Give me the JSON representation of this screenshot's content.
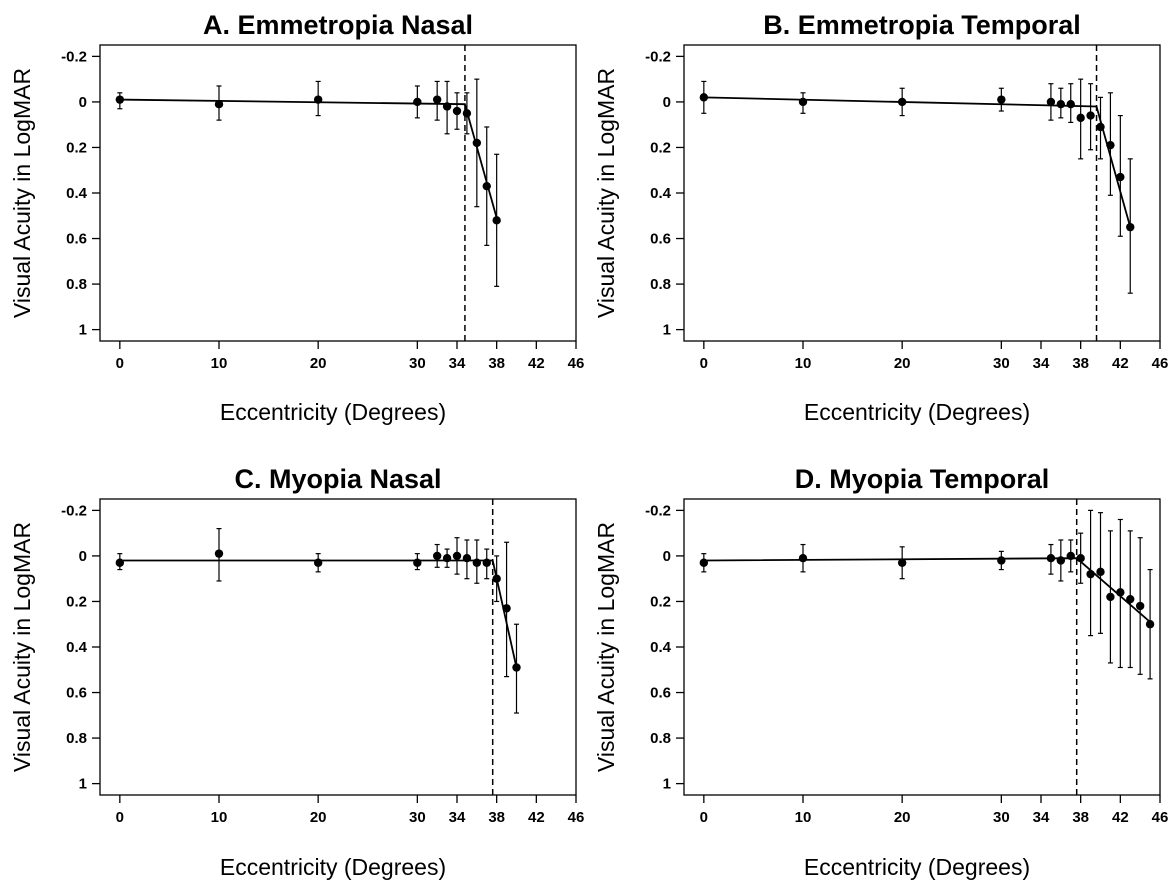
{
  "chart_data": [
    {
      "type": "scatter",
      "title": "A. Emmetropia Nasal",
      "xlabel": "Eccentricity (Degrees)",
      "ylabel": "Visual Acuity in LogMAR",
      "xlim": [
        -2,
        46
      ],
      "ylim": [
        -0.25,
        1.05
      ],
      "y_inverted": true,
      "x_ticks": [
        0,
        10,
        20,
        30,
        34,
        38,
        42,
        46
      ],
      "y_ticks": [
        -0.2,
        0,
        0.2,
        0.4,
        0.6,
        0.8,
        1
      ],
      "y_tick_labels": [
        "-0.2",
        "0",
        "0.2",
        "0.4",
        "0.6",
        "0.8",
        "1"
      ],
      "breakpoint": 34.8,
      "points": [
        {
          "x": 0,
          "y": -0.01,
          "lo": -0.04,
          "hi": 0.03
        },
        {
          "x": 10,
          "y": 0.01,
          "lo": -0.07,
          "hi": 0.08
        },
        {
          "x": 20,
          "y": -0.01,
          "lo": -0.09,
          "hi": 0.06
        },
        {
          "x": 30,
          "y": 0.0,
          "lo": -0.07,
          "hi": 0.07
        },
        {
          "x": 32,
          "y": -0.01,
          "lo": -0.09,
          "hi": 0.08
        },
        {
          "x": 33,
          "y": 0.02,
          "lo": -0.09,
          "hi": 0.14
        },
        {
          "x": 34,
          "y": 0.04,
          "lo": -0.04,
          "hi": 0.12
        },
        {
          "x": 35,
          "y": 0.05,
          "lo": -0.04,
          "hi": 0.14
        },
        {
          "x": 36,
          "y": 0.18,
          "lo": -0.1,
          "hi": 0.46
        },
        {
          "x": 37,
          "y": 0.37,
          "lo": 0.11,
          "hi": 0.63
        },
        {
          "x": 38,
          "y": 0.52,
          "lo": 0.23,
          "hi": 0.81
        }
      ],
      "fit": [
        [
          0,
          -0.01
        ],
        [
          34.8,
          0.01
        ],
        [
          38,
          0.51
        ]
      ]
    },
    {
      "type": "scatter",
      "title": "B. Emmetropia Temporal",
      "xlabel": "Eccentricity (Degrees)",
      "ylabel": "Visual Acuity in LogMAR",
      "xlim": [
        -2,
        46
      ],
      "ylim": [
        -0.25,
        1.05
      ],
      "y_inverted": true,
      "x_ticks": [
        0,
        10,
        20,
        30,
        34,
        38,
        42,
        46
      ],
      "y_ticks": [
        -0.2,
        0,
        0.2,
        0.4,
        0.6,
        0.8,
        1
      ],
      "y_tick_labels": [
        "-0.2",
        "0",
        "0.2",
        "0.4",
        "0.6",
        "0.8",
        "1"
      ],
      "breakpoint": 39.6,
      "points": [
        {
          "x": 0,
          "y": -0.02,
          "lo": -0.09,
          "hi": 0.05
        },
        {
          "x": 10,
          "y": 0.0,
          "lo": -0.04,
          "hi": 0.05
        },
        {
          "x": 20,
          "y": 0.0,
          "lo": -0.06,
          "hi": 0.06
        },
        {
          "x": 30,
          "y": -0.01,
          "lo": -0.06,
          "hi": 0.04
        },
        {
          "x": 35,
          "y": 0.0,
          "lo": -0.08,
          "hi": 0.08
        },
        {
          "x": 36,
          "y": 0.01,
          "lo": -0.06,
          "hi": 0.07
        },
        {
          "x": 37,
          "y": 0.01,
          "lo": -0.08,
          "hi": 0.09
        },
        {
          "x": 38,
          "y": 0.07,
          "lo": -0.1,
          "hi": 0.25
        },
        {
          "x": 39,
          "y": 0.06,
          "lo": -0.08,
          "hi": 0.21
        },
        {
          "x": 40,
          "y": 0.11,
          "lo": -0.02,
          "hi": 0.25
        },
        {
          "x": 41,
          "y": 0.19,
          "lo": -0.04,
          "hi": 0.41
        },
        {
          "x": 42,
          "y": 0.33,
          "lo": 0.06,
          "hi": 0.59
        },
        {
          "x": 43,
          "y": 0.55,
          "lo": 0.25,
          "hi": 0.84
        }
      ],
      "fit": [
        [
          0,
          -0.02
        ],
        [
          39.6,
          0.02
        ],
        [
          43,
          0.55
        ]
      ]
    },
    {
      "type": "scatter",
      "title": "C. Myopia Nasal",
      "xlabel": "Eccentricity (Degrees)",
      "ylabel": "Visual Acuity in LogMAR",
      "xlim": [
        -2,
        46
      ],
      "ylim": [
        -0.25,
        1.05
      ],
      "y_inverted": true,
      "x_ticks": [
        0,
        10,
        20,
        30,
        34,
        38,
        42,
        46
      ],
      "y_ticks": [
        -0.2,
        0,
        0.2,
        0.4,
        0.6,
        0.8,
        1
      ],
      "y_tick_labels": [
        "-0.2",
        "0",
        "0.2",
        "0.4",
        "0.6",
        "0.8",
        "1"
      ],
      "breakpoint": 37.6,
      "points": [
        {
          "x": 0,
          "y": 0.03,
          "lo": -0.01,
          "hi": 0.06
        },
        {
          "x": 10,
          "y": -0.01,
          "lo": -0.12,
          "hi": 0.11
        },
        {
          "x": 20,
          "y": 0.03,
          "lo": -0.01,
          "hi": 0.07
        },
        {
          "x": 30,
          "y": 0.03,
          "lo": -0.01,
          "hi": 0.06
        },
        {
          "x": 32,
          "y": 0.0,
          "lo": -0.05,
          "hi": 0.05
        },
        {
          "x": 33,
          "y": 0.01,
          "lo": -0.03,
          "hi": 0.05
        },
        {
          "x": 34,
          "y": 0.0,
          "lo": -0.08,
          "hi": 0.08
        },
        {
          "x": 35,
          "y": 0.01,
          "lo": -0.07,
          "hi": 0.1
        },
        {
          "x": 36,
          "y": 0.03,
          "lo": -0.07,
          "hi": 0.12
        },
        {
          "x": 37,
          "y": 0.03,
          "lo": -0.03,
          "hi": 0.1
        },
        {
          "x": 38,
          "y": 0.1,
          "lo": 0.0,
          "hi": 0.2
        },
        {
          "x": 39,
          "y": 0.23,
          "lo": -0.06,
          "hi": 0.53
        },
        {
          "x": 40,
          "y": 0.49,
          "lo": 0.3,
          "hi": 0.69
        }
      ],
      "fit": [
        [
          0,
          0.02
        ],
        [
          37.6,
          0.02
        ],
        [
          40,
          0.49
        ]
      ]
    },
    {
      "type": "scatter",
      "title": "D. Myopia Temporal",
      "xlabel": "Eccentricity (Degrees)",
      "ylabel": "Visual Acuity in LogMAR",
      "xlim": [
        -2,
        46
      ],
      "ylim": [
        -0.25,
        1.05
      ],
      "y_inverted": true,
      "x_ticks": [
        0,
        10,
        20,
        30,
        34,
        38,
        42,
        46
      ],
      "y_ticks": [
        -0.2,
        0,
        0.2,
        0.4,
        0.6,
        0.8,
        1
      ],
      "y_tick_labels": [
        "-0.2",
        "0",
        "0.2",
        "0.4",
        "0.6",
        "0.8",
        "1"
      ],
      "breakpoint": 37.6,
      "points": [
        {
          "x": 0,
          "y": 0.03,
          "lo": -0.01,
          "hi": 0.07
        },
        {
          "x": 10,
          "y": 0.01,
          "lo": -0.05,
          "hi": 0.07
        },
        {
          "x": 20,
          "y": 0.03,
          "lo": -0.04,
          "hi": 0.1
        },
        {
          "x": 30,
          "y": 0.02,
          "lo": -0.02,
          "hi": 0.06
        },
        {
          "x": 35,
          "y": 0.01,
          "lo": -0.05,
          "hi": 0.08
        },
        {
          "x": 36,
          "y": 0.02,
          "lo": -0.07,
          "hi": 0.11
        },
        {
          "x": 37,
          "y": 0.0,
          "lo": -0.07,
          "hi": 0.07
        },
        {
          "x": 38,
          "y": 0.01,
          "lo": -0.1,
          "hi": 0.12
        },
        {
          "x": 39,
          "y": 0.08,
          "lo": -0.2,
          "hi": 0.35
        },
        {
          "x": 40,
          "y": 0.07,
          "lo": -0.19,
          "hi": 0.34
        },
        {
          "x": 41,
          "y": 0.18,
          "lo": -0.11,
          "hi": 0.47
        },
        {
          "x": 42,
          "y": 0.16,
          "lo": -0.16,
          "hi": 0.49
        },
        {
          "x": 43,
          "y": 0.19,
          "lo": -0.11,
          "hi": 0.49
        },
        {
          "x": 44,
          "y": 0.22,
          "lo": -0.08,
          "hi": 0.52
        },
        {
          "x": 45,
          "y": 0.3,
          "lo": 0.06,
          "hi": 0.54
        }
      ],
      "fit": [
        [
          0,
          0.02
        ],
        [
          37.6,
          0.01
        ],
        [
          45,
          0.29
        ]
      ]
    }
  ]
}
